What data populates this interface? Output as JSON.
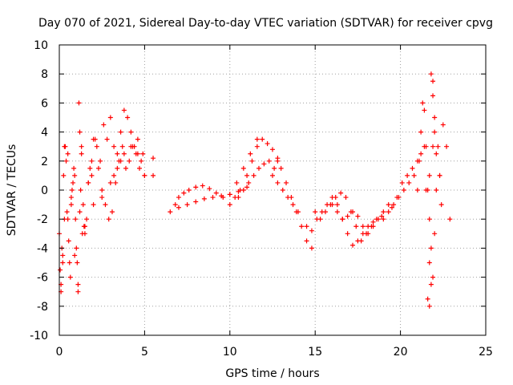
{
  "chart_data": {
    "type": "scatter",
    "title": "Day 070 of 2021, Sidereal Day-to-day VTEC variation (SDTVAR) for receiver cpvg",
    "xlabel": "GPS time / hours",
    "ylabel": "SDTVAR / TECUs",
    "xlim": [
      0,
      25
    ],
    "ylim": [
      -10,
      10
    ],
    "xticks": [
      0,
      5,
      10,
      15,
      20,
      25
    ],
    "xtick_labels": [
      "0",
      "5",
      "10",
      "15",
      "20",
      "25"
    ],
    "yticks": [
      -10,
      -8,
      -6,
      -4,
      -2,
      0,
      2,
      4,
      6,
      8,
      10
    ],
    "ytick_labels": [
      "-10",
      "-8",
      "-6",
      "-4",
      "-2",
      "0",
      "2",
      "4",
      "6",
      "8",
      "10"
    ],
    "grid": true,
    "marker": "+",
    "color": "#ff0000",
    "series": [
      {
        "name": "SDTVAR",
        "x": [
          0.0,
          0.1,
          0.2,
          0.3,
          0.4,
          0.5,
          0.6,
          0.7,
          0.8,
          0.9,
          1.0,
          1.1,
          1.2,
          1.3,
          1.4,
          1.5,
          1.6,
          1.7,
          1.8,
          1.9,
          2.0,
          2.2,
          2.4,
          2.6,
          2.8,
          3.0,
          3.2,
          3.4,
          3.6,
          3.8,
          4.0,
          4.2,
          4.4,
          4.6,
          4.8,
          5.0,
          0.05,
          0.15,
          0.25,
          0.35,
          0.45,
          0.55,
          0.65,
          0.75,
          0.85,
          0.95,
          1.05,
          1.15,
          1.25,
          1.35,
          1.45,
          0.1,
          0.2,
          0.3,
          0.5,
          0.7,
          0.9,
          1.1,
          1.2,
          1.3,
          1.5,
          1.7,
          1.9,
          2.1,
          2.3,
          2.5,
          2.7,
          2.9,
          3.1,
          3.3,
          3.5,
          3.7,
          3.9,
          4.1,
          4.3,
          4.5,
          4.7,
          4.9,
          2.0,
          2.5,
          3.0,
          3.2,
          3.4,
          3.6,
          3.8,
          4.2,
          4.6,
          5.0,
          5.5,
          5.5,
          6.5,
          6.8,
          7.0,
          7.3,
          7.6,
          8.0,
          8.4,
          8.8,
          9.2,
          9.6,
          10.0,
          10.4,
          10.8,
          11.2,
          11.6,
          7.0,
          7.5,
          8.0,
          8.5,
          9.0,
          9.5,
          10.0,
          10.5,
          11.0,
          10.0,
          10.3,
          10.6,
          11.0,
          11.3,
          11.6,
          11.9,
          12.2,
          12.5,
          12.8,
          10.5,
          10.8,
          11.1,
          11.4,
          11.7,
          12.0,
          12.3,
          12.6,
          12.8,
          13.0,
          13.3,
          13.6,
          13.9,
          14.2,
          14.5,
          14.8,
          12.5,
          12.8,
          13.1,
          13.4,
          13.7,
          14.0,
          15.0,
          15.3,
          15.6,
          15.9,
          16.2,
          16.5,
          16.8,
          17.1,
          17.4,
          17.7,
          18.0,
          18.3,
          18.6,
          18.9,
          14.5,
          14.8,
          15.1,
          15.4,
          15.7,
          16.0,
          16.3,
          16.6,
          16.9,
          17.2,
          17.5,
          17.8,
          18.1,
          18.4,
          16.0,
          16.3,
          16.6,
          16.9,
          17.2,
          17.5,
          17.8,
          18.1,
          18.4,
          18.7,
          19.0,
          19.3,
          19.5,
          19.8,
          20.1,
          20.4,
          20.7,
          21.0,
          21.2,
          21.4,
          19.0,
          19.3,
          19.6,
          19.9,
          20.2,
          20.5,
          20.8,
          21.0,
          21.1,
          21.2,
          21.3,
          21.4,
          21.5,
          21.6,
          21.7,
          21.8,
          21.9,
          22.0,
          22.1,
          22.2,
          22.3,
          22.4,
          21.6,
          21.7,
          21.8,
          21.9,
          22.0,
          21.5,
          21.7,
          21.9,
          22.1,
          22.3,
          22.5,
          22.7,
          22.9,
          21.7,
          21.8,
          21.9,
          22.0
        ],
        "y": [
          -3.0,
          -6.5,
          -5.0,
          3.0,
          2.0,
          -2.0,
          -5.0,
          -1.0,
          0.5,
          1.0,
          -4.0,
          -6.5,
          4.0,
          2.5,
          -1.0,
          -3.0,
          -2.0,
          0.5,
          1.5,
          2.0,
          3.5,
          3.0,
          2.0,
          4.5,
          3.5,
          5.0,
          3.0,
          2.5,
          4.0,
          5.5,
          5.0,
          4.0,
          3.0,
          2.5,
          2.0,
          1.0,
          -5.5,
          -4.0,
          1.0,
          3.0,
          -1.5,
          -3.5,
          -6.0,
          0.0,
          1.5,
          -2.0,
          -5.0,
          6.0,
          0.0,
          -3.0,
          -2.5,
          -7.0,
          -4.5,
          -2.0,
          2.5,
          -0.5,
          -4.5,
          -7.0,
          -1.5,
          3.0,
          -2.5,
          0.5,
          1.0,
          3.5,
          1.5,
          0.0,
          -1.0,
          -2.0,
          -1.5,
          0.5,
          2.0,
          3.0,
          1.5,
          2.0,
          3.0,
          2.5,
          1.5,
          2.5,
          -1.0,
          -0.5,
          0.5,
          1.0,
          1.5,
          2.0,
          2.5,
          3.0,
          3.5,
          1.0,
          2.2,
          1.0,
          -1.5,
          -1.0,
          -0.5,
          -0.2,
          0.0,
          0.2,
          0.3,
          0.1,
          -0.2,
          -0.5,
          -0.3,
          0.5,
          1.5,
          2.5,
          3.5,
          -1.2,
          -1.0,
          -0.8,
          -0.6,
          -0.5,
          -0.4,
          -0.3,
          -0.1,
          0.2,
          -1.0,
          -0.5,
          0.0,
          1.0,
          2.0,
          3.0,
          3.5,
          3.2,
          2.8,
          2.2,
          -0.5,
          0.0,
          0.5,
          1.0,
          1.5,
          1.8,
          2.0,
          1.5,
          2.0,
          1.5,
          0.5,
          -0.5,
          -1.5,
          -2.5,
          -3.5,
          -4.0,
          1.0,
          0.5,
          0.0,
          -0.5,
          -1.0,
          -1.5,
          -1.5,
          -2.0,
          -1.5,
          -1.0,
          -0.5,
          -0.2,
          -0.5,
          -1.5,
          -2.5,
          -3.5,
          -3.0,
          -2.5,
          -2.0,
          -1.8,
          -2.5,
          -2.8,
          -2.0,
          -1.5,
          -1.0,
          -0.5,
          -1.0,
          -2.0,
          -3.0,
          -3.8,
          -3.5,
          -3.0,
          -2.5,
          -2.2,
          -1.0,
          -1.5,
          -2.0,
          -1.8,
          -1.5,
          -1.8,
          -2.5,
          -3.0,
          -2.5,
          -2.0,
          -1.5,
          -1.0,
          -1.2,
          -0.5,
          0.5,
          1.0,
          1.5,
          2.0,
          2.5,
          3.0,
          -2.0,
          -1.5,
          -1.0,
          -0.5,
          0.0,
          0.5,
          1.0,
          0.0,
          2.0,
          4.0,
          6.0,
          5.5,
          3.0,
          0.0,
          -2.0,
          -4.0,
          -6.0,
          -3.0,
          0.0,
          3.0,
          1.0,
          -1.0,
          -7.5,
          -5.0,
          8.0,
          6.5,
          4.0,
          0.0,
          1.0,
          3.0,
          2.5,
          1.0,
          4.5,
          3.0,
          -2.0,
          -8.0,
          -6.5,
          7.5,
          5.0
        ]
      }
    ]
  }
}
